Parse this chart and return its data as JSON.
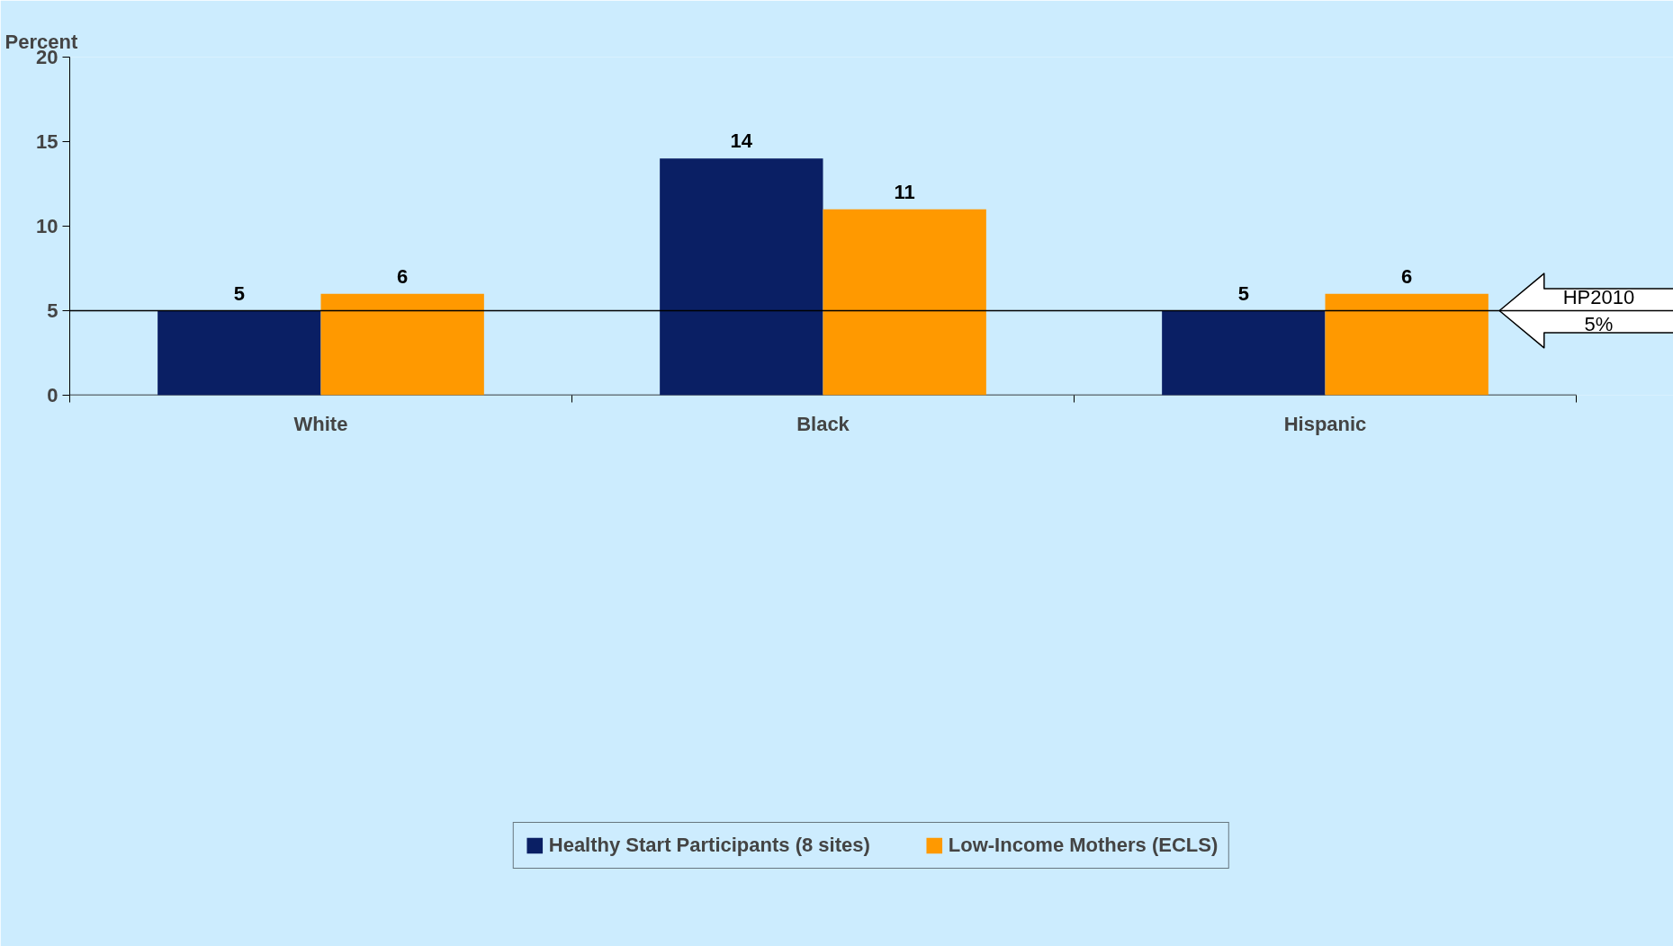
{
  "chart_data": {
    "type": "bar",
    "ylabel": "Percent",
    "categories": [
      "White",
      "Black",
      "Hispanic"
    ],
    "series": [
      {
        "name": "Healthy Start Participants (8 sites)",
        "color": "#0a1f64",
        "values": [
          5,
          14,
          5
        ]
      },
      {
        "name": "Low-Income Mothers (ECLS)",
        "color": "#ff9900",
        "values": [
          6,
          11,
          6
        ]
      }
    ],
    "ylim": [
      0,
      20
    ],
    "yticks": [
      0,
      5,
      10,
      15,
      20
    ],
    "grid": false,
    "legend": "bottom",
    "data_labels": true,
    "ref_lines": [
      {
        "axis": "y",
        "value": 5,
        "label": "HP2010\n5%",
        "color": "#000000"
      }
    ]
  }
}
